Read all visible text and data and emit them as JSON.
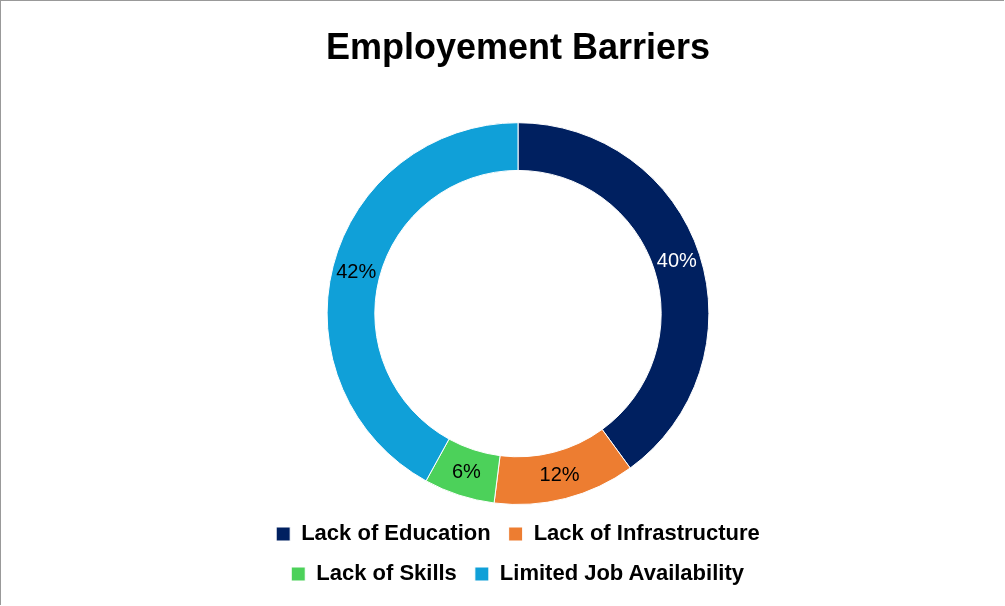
{
  "chart_data": {
    "type": "donut",
    "title": "Employement Barriers",
    "categories": [
      "Lack of Education",
      "Lack of Infrastructure",
      "Lack of Skills",
      "Limited Job Availability"
    ],
    "values": [
      40,
      12,
      6,
      42
    ],
    "colors": [
      "#002060",
      "#ed7d31",
      "#4cd15a",
      "#10a0d8"
    ],
    "value_labels": [
      "40%",
      "12%",
      "6%",
      "42%"
    ],
    "legend": "bottom"
  }
}
